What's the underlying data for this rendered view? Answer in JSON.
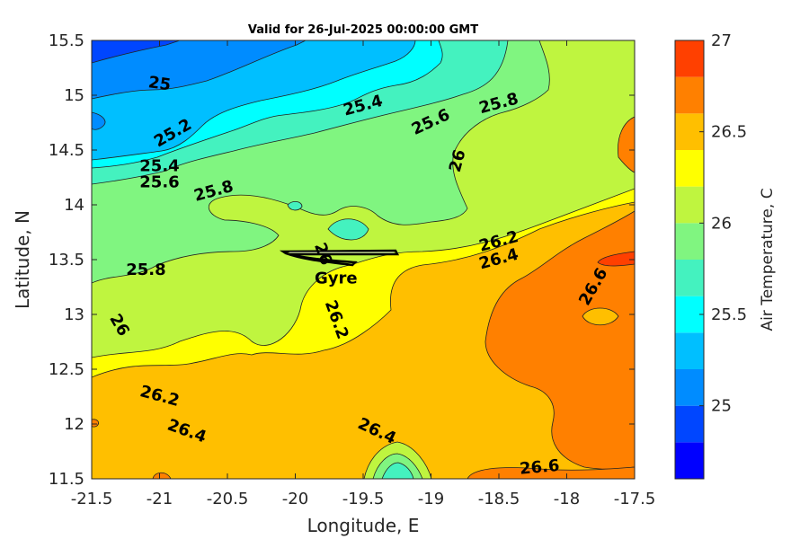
{
  "chart_data": {
    "type": "contour",
    "title": "Valid for 26-Jul-2025 00:00:00 GMT",
    "xlabel": "Longitude, E",
    "ylabel": "Latitude, N",
    "xlim": [
      -21.5,
      -17.5
    ],
    "ylim": [
      11.5,
      15.5
    ],
    "x_ticks": [
      "-21.5",
      "-21",
      "-20.5",
      "-20",
      "-19.5",
      "-19",
      "-18.5",
      "-18",
      "-17.5"
    ],
    "y_ticks": [
      "15.5",
      "15",
      "14.5",
      "14",
      "13.5",
      "13",
      "12.5",
      "12",
      "11.5"
    ],
    "colorbar": {
      "label": "Air Temperature, C",
      "range": [
        24.6,
        27.0
      ],
      "ticks": [
        "27",
        "26.5",
        "26",
        "25.5",
        "25"
      ],
      "levels": [
        24.6,
        24.8,
        25.0,
        25.2,
        25.4,
        25.6,
        25.8,
        26.0,
        26.2,
        26.4,
        26.6,
        26.8,
        27.0
      ],
      "colors": [
        "#0000ff",
        "#0046ff",
        "#008cff",
        "#00bfff",
        "#00ffff",
        "#44f2bf",
        "#80f580",
        "#bff53f",
        "#ffff00",
        "#ffbf00",
        "#ff8000",
        "#ff4000",
        "#ff0000"
      ]
    },
    "contour_labels": [
      {
        "value": "25",
        "lon": -21.0,
        "lat": 15.1
      },
      {
        "value": "25.2",
        "lon": -20.9,
        "lat": 14.65
      },
      {
        "value": "25.4",
        "lon": -21.0,
        "lat": 14.35
      },
      {
        "value": "25.6",
        "lon": -21.0,
        "lat": 14.2
      },
      {
        "value": "25.4",
        "lon": -19.5,
        "lat": 14.9
      },
      {
        "value": "25.6",
        "lon": -19.0,
        "lat": 14.75
      },
      {
        "value": "25.8",
        "lon": -18.5,
        "lat": 14.92
      },
      {
        "value": "25.8",
        "lon": -20.6,
        "lat": 14.12
      },
      {
        "value": "26",
        "lon": -18.8,
        "lat": 14.4
      },
      {
        "value": "25.8",
        "lon": -21.1,
        "lat": 13.4
      },
      {
        "value": "26",
        "lon": -21.3,
        "lat": 12.9
      },
      {
        "value": "26.2",
        "lon": -19.7,
        "lat": 12.95
      },
      {
        "value": "26.2",
        "lon": -18.5,
        "lat": 13.66
      },
      {
        "value": "26.4",
        "lon": -18.5,
        "lat": 13.5
      },
      {
        "value": "26.6",
        "lon": -17.8,
        "lat": 13.25
      },
      {
        "value": "26.2",
        "lon": -21.0,
        "lat": 12.25
      },
      {
        "value": "26.4",
        "lon": -20.8,
        "lat": 11.93
      },
      {
        "value": "26.4",
        "lon": -19.4,
        "lat": 11.93
      },
      {
        "value": "26.6",
        "lon": -18.2,
        "lat": 11.6
      },
      {
        "value": "26",
        "lon": -19.8,
        "lat": 13.55
      }
    ],
    "annotations": [
      {
        "text": "Gyre",
        "lon": -19.7,
        "lat": 13.33
      }
    ]
  }
}
